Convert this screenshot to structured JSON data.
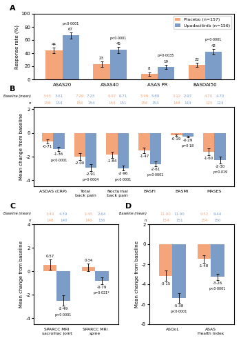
{
  "chart_data": [
    {
      "type": "bar",
      "panel_label": "A",
      "categories": [
        "ASAS20",
        "ASAS40",
        "ASAS PR",
        "BASDAI50"
      ],
      "ylabel": "Response rate (%)",
      "ylim": [
        0,
        100
      ],
      "yticks": [
        0,
        20,
        40,
        60,
        80,
        100
      ],
      "legend": "upper right",
      "data_labels": true,
      "series": [
        {
          "name": "Placebo (n=157)",
          "color": "#F4A67A",
          "values": [
            44,
            23,
            8,
            22
          ],
          "errors": [
            4.5,
            4.0,
            3.0,
            3.5
          ]
        },
        {
          "name": "Upadacitinib (n=156)",
          "color": "#7B9DC7",
          "values": [
            67,
            45,
            19,
            42
          ],
          "errors": [
            4.5,
            4.5,
            3.5,
            4.5
          ]
        }
      ],
      "annotations": [
        "p<0·0001",
        "p<0·0001",
        "p=0·0035",
        "p=0·0001"
      ]
    },
    {
      "type": "bar",
      "panel_label": "B",
      "categories": [
        "ASDAS (CRP)",
        "Total\nback pain",
        "Nocturnal\nback pain",
        "BASFI",
        "BASMI",
        "MASES"
      ],
      "ylabel": "Mean change from baseline",
      "ylim": [
        -4.5,
        2.2
      ],
      "yticks": [
        -4,
        -2,
        0,
        2
      ],
      "data_labels": true,
      "n_label": "n",
      "baseline_label": "Baseline (mean)",
      "series": [
        {
          "name": "Placebo (n=157)",
          "color": "#F4A67A",
          "values": [
            -0.71,
            -2.0,
            -1.84,
            -1.47,
            -0.19,
            -1.6
          ],
          "errors": [
            0.18,
            0.28,
            0.25,
            0.25,
            0.06,
            0.28
          ],
          "value_labels": [
            "-0·71",
            "-2·00",
            "-1·84",
            "-1·47",
            "-0·19",
            "-1·60"
          ],
          "n": [
            156,
            156,
            154,
            156,
            148,
            125
          ],
          "baseline": [
            "3·65",
            "7·29",
            "6·97",
            "5·99",
            "3·12",
            "4·70"
          ]
        },
        {
          "name": "Upadacitinib (n=156)",
          "color": "#7B9DC7",
          "values": [
            -1.36,
            -2.91,
            -2.96,
            -2.61,
            -0.29,
            -2.3
          ],
          "errors": [
            0.18,
            0.28,
            0.22,
            0.2,
            0.06,
            0.28
          ],
          "value_labels": [
            "-1·36",
            "-2·91",
            "-2·96",
            "-2·61",
            "-0·29",
            "-2·30"
          ],
          "n": [
            154,
            154,
            151,
            154,
            144,
            124
          ],
          "baseline": [
            "3·61",
            "7·23",
            "6·71",
            "5·89",
            "2·97",
            "4·70"
          ]
        }
      ],
      "annotations": [
        "p<0·0001",
        "p=0·0004",
        "p<0·0001",
        "p<0·0001",
        "p=0·18",
        "p=0·019"
      ]
    },
    {
      "type": "bar",
      "panel_label": "C",
      "categories": [
        "SPARCC MRI\nsacroiliac joint",
        "SPARCC MRI\nspine"
      ],
      "ylabel": "Mean change from baseline",
      "ylim": [
        -4.5,
        4.0
      ],
      "yticks": [
        -4,
        -2,
        0,
        2,
        4
      ],
      "data_labels": true,
      "n_label": "n",
      "baseline_label": "Baseline (mean)",
      "series": [
        {
          "name": "Placebo (n=157)",
          "color": "#F4A67A",
          "values": [
            0.57,
            0.34
          ],
          "errors": [
            0.45,
            0.3
          ],
          "value_labels": [
            "0·57",
            "0·34"
          ],
          "n": [
            148,
            146
          ],
          "baseline": [
            "3·49",
            "1·45"
          ]
        },
        {
          "name": "Upadacitinib (n=156)",
          "color": "#7B9DC7",
          "values": [
            -2.49,
            -0.79
          ],
          "errors": [
            0.45,
            0.3
          ],
          "value_labels": [
            "-2·49",
            "-0·79"
          ],
          "n": [
            140,
            136
          ],
          "baseline": [
            "4·39",
            "2·64"
          ]
        }
      ],
      "annotations": [
        "p<0·0001",
        "p=0·021*"
      ]
    },
    {
      "type": "bar",
      "panel_label": "D",
      "categories": [
        "ASQoL",
        "ASAS\nHealth Index"
      ],
      "ylabel": "Mean change from baseline",
      "ylim": [
        -8.0,
        2.0
      ],
      "yticks": [
        -8,
        -6,
        -4,
        -2,
        0,
        2
      ],
      "data_labels": true,
      "n_label": "n",
      "baseline_label": "Baseline (mean)",
      "series": [
        {
          "name": "Placebo (n=157)",
          "color": "#F4A67A",
          "values": [
            -3.15,
            -1.48
          ],
          "errors": [
            0.5,
            0.35
          ],
          "value_labels": [
            "-3·15",
            "-1·48"
          ],
          "n": [
            154,
            154
          ],
          "baseline": [
            "11·90",
            "9·52"
          ]
        },
        {
          "name": "Upadacitinib (n=156)",
          "color": "#7B9DC7",
          "values": [
            -5.38,
            -3.26
          ],
          "errors": [
            0.45,
            0.32
          ],
          "value_labels": [
            "-5·38",
            "-3·26"
          ],
          "n": [
            151,
            150
          ],
          "baseline": [
            "11·90",
            "9·44"
          ]
        }
      ],
      "annotations": [
        "p<0·0001",
        "p<0·0001"
      ]
    }
  ]
}
